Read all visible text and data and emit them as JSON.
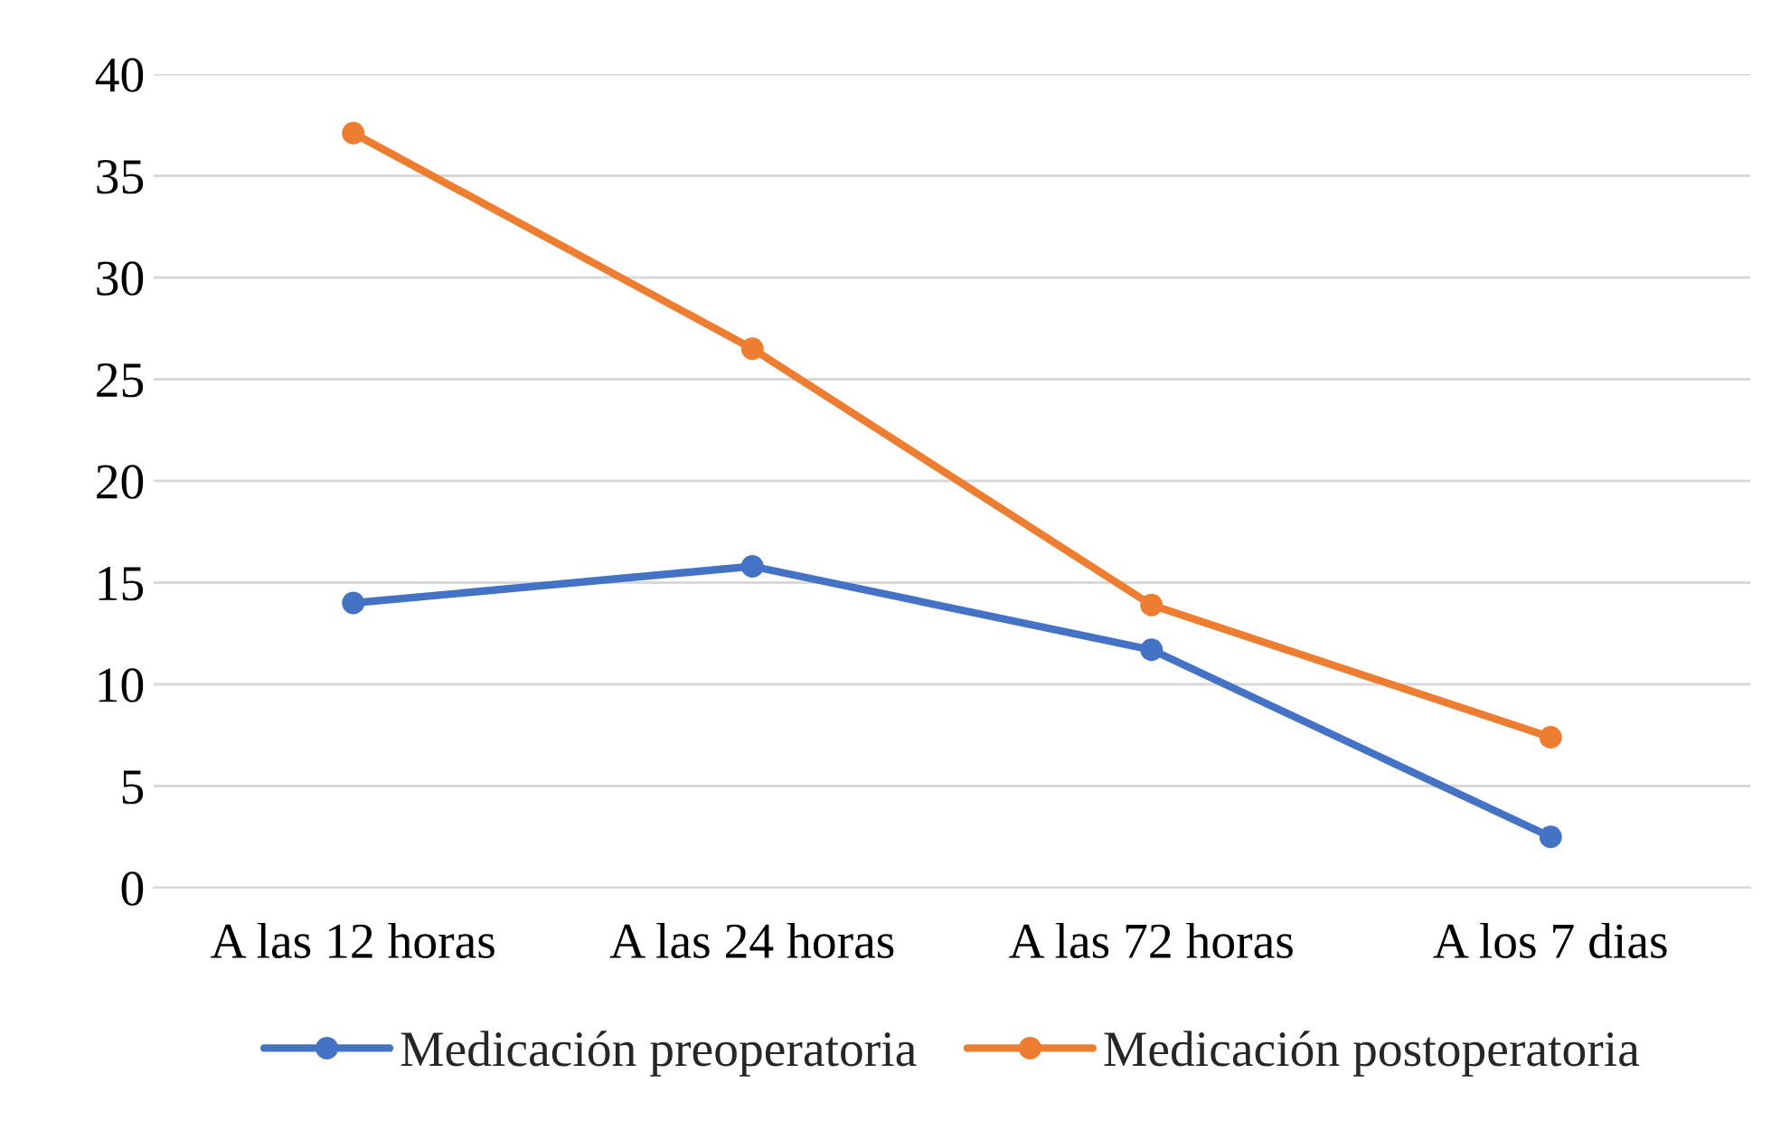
{
  "chart_data": {
    "type": "line",
    "categories": [
      "A las 12 horas",
      "A las 24 horas",
      "A las 72 horas",
      "A los 7 dias"
    ],
    "series": [
      {
        "name": "Medicación preoperatoria",
        "color": "#4472c4",
        "values": [
          14.0,
          15.8,
          11.7,
          2.5
        ]
      },
      {
        "name": "Medicación postoperatoria",
        "color": "#ed7d31",
        "values": [
          37.1,
          26.5,
          13.9,
          7.4
        ]
      }
    ],
    "ylim": [
      0,
      40
    ],
    "yticks": [
      0,
      5,
      10,
      15,
      20,
      25,
      30,
      35,
      40
    ],
    "grid": "y",
    "legend": "bottom",
    "marker": "circle",
    "line_style": "solid"
  }
}
